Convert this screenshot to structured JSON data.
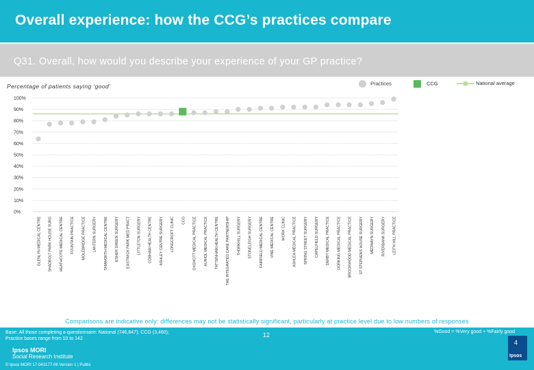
{
  "header": {
    "title": "Overall experience: how the CCG’s practices compare",
    "question": "Q31. Overall, how would you describe your experience of your GP practice?"
  },
  "legend": {
    "practices": "Practices",
    "ccg": "CCG",
    "national": "National average"
  },
  "colors": {
    "practice": "#d0d0d0",
    "ccg": "#5cb85c",
    "national": "#b8e0a0",
    "accent": "#19b6cf"
  },
  "chart_data": {
    "type": "bar",
    "title": "Percentage of patients saying ‘good’",
    "ylim": [
      0,
      100
    ],
    "yticks": [
      "0%",
      "10%",
      "20%",
      "30%",
      "40%",
      "50%",
      "60%",
      "70%",
      "80%",
      "90%",
      "100%"
    ],
    "categories": [
      "GLENLYN MEDICAL CENTRE",
      "SHADBOLT PARK HOUSE SURG",
      "HEATHCOTE MEDICAL CENTRE",
      "FOUNTAIN PRACTICE",
      "MOLEBRIDGE PRACTICE",
      "LANTERN SURGERY",
      "TAMWORTH MEDICAL CENTRE",
      "ESHER GREEN SURGERY",
      "EASTWICK PARK MED PRACT",
      "LITTLETON SURGERY",
      "COBHAM HEALTH CENTRE",
      "ASHLEY CENTRE SURGERY",
      "LONGCROFT CLINIC",
      "CCG",
      "OXSHOTT MEDICAL PRACTICE",
      "AURIOL MEDICAL PRACTICE",
      "TATTENHAM HEALTH CENTRE",
      "THE INTEGRATED CARE PARTNERSHIP",
      "THORKHILL SURGERY",
      "STONELEIGH SURGERY",
      "FAIRFIELD MEDICAL CENTRE",
      "VINE MEDICAL CENTRE",
      "WORK CLINIC",
      "ASHLEA MEDICAL PRACTICE",
      "SPRING STREET SURGERY",
      "CAPELFIELD SURGERY",
      "DERBY MEDICAL PRACTICE",
      "DORKING MEDICAL PRACTICE",
      "BROOKWOOD MEDICAL PRACTICE",
      "ST STEPHENS HOUSE SURGERY",
      "MEDWAYN SURGERY",
      "RIVERBANK SURGERY",
      "LEITH HILL PRACTICE"
    ],
    "values": [
      64,
      77,
      78,
      78,
      79,
      79,
      81,
      84,
      85,
      86,
      86,
      86,
      86,
      88,
      87,
      87,
      88,
      88,
      90,
      90,
      91,
      91,
      92,
      92,
      92,
      92,
      94,
      94,
      94,
      94,
      95,
      96,
      99
    ],
    "highlight": "CCG",
    "national_average": 86
  },
  "footer": {
    "note": "Comparisons are indicative only: differences may not be statistically significant, particularly at practice level due to low numbers of responses",
    "base_line1": "Base: All those completing a questionnaire: National (746,847); CCG (3,460);",
    "base_line2": "Practice bases range from 10 to 142",
    "formula": "%Good = %Very good + %Fairly good",
    "brand_line1": "Ipsos MORI",
    "brand_line2": "Social Research Institute",
    "copyright": "© Ipsos MORI      17-043177-06 Version 1 | Public",
    "page_number": "12",
    "logo_text": "Ipsos",
    "logo_mark": "4"
  }
}
